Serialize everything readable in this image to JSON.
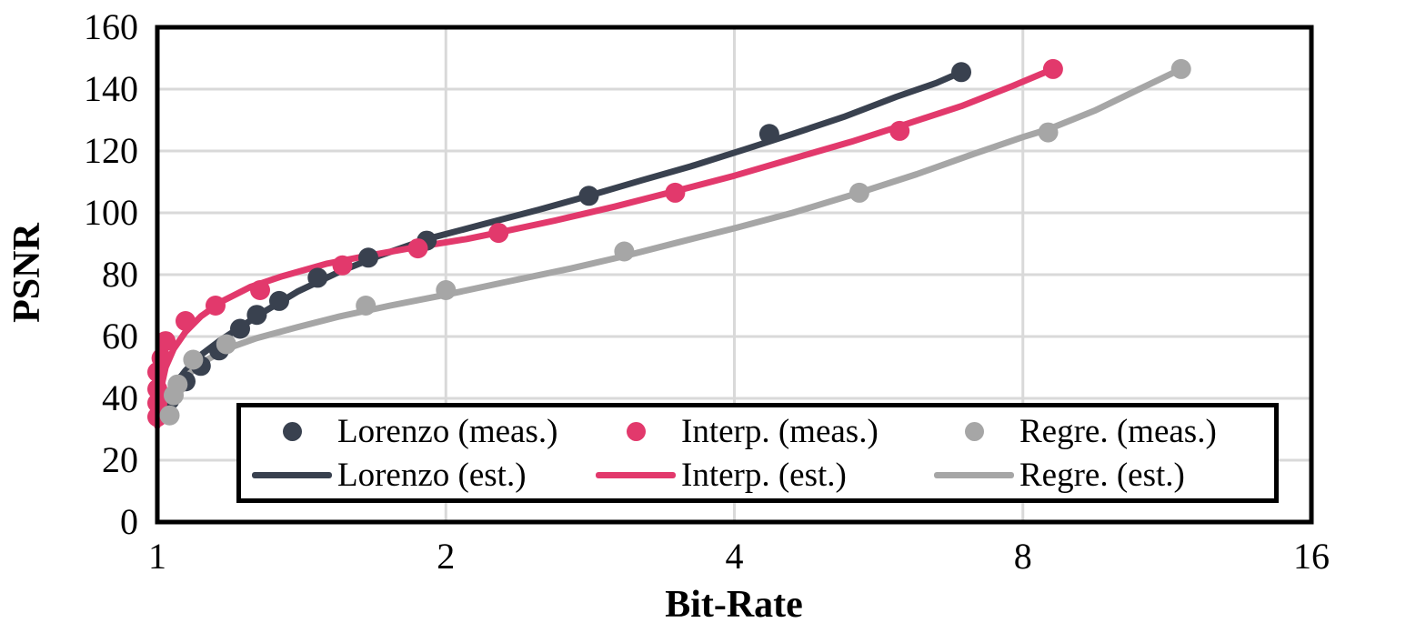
{
  "chart_data": {
    "type": "scatter",
    "title": "",
    "xlabel": "Bit-Rate",
    "ylabel": "PSNR",
    "x_scale": "log2",
    "xlim": [
      1,
      16
    ],
    "ylim": [
      0,
      160
    ],
    "x_ticks": [
      1,
      2,
      4,
      8,
      16
    ],
    "y_ticks": [
      0,
      20,
      40,
      60,
      80,
      100,
      120,
      140,
      160
    ],
    "grid": true,
    "legend_position": "inside-bottom",
    "colors": {
      "navy": "#39414F",
      "pink": "#E2396C",
      "gray": "#A6A6A6",
      "gridline": "#D9D9D9",
      "axis": "#000000",
      "background": "#FFFFFF"
    },
    "series": [
      {
        "name": "Lorenzo (meas.)",
        "kind": "scatter",
        "color": "#39414F",
        "points": [
          [
            1.02,
            36
          ],
          [
            1.03,
            39.5
          ],
          [
            1.07,
            45.5
          ],
          [
            1.11,
            50.5
          ],
          [
            1.16,
            55.5
          ],
          [
            1.22,
            62.5
          ],
          [
            1.27,
            67
          ],
          [
            1.34,
            71.5
          ],
          [
            1.47,
            79
          ],
          [
            1.66,
            85.5
          ],
          [
            1.91,
            91
          ],
          [
            2.82,
            105.5
          ],
          [
            4.35,
            125.5
          ],
          [
            6.9,
            145.5
          ]
        ]
      },
      {
        "name": "Interp. (meas.)",
        "kind": "scatter",
        "color": "#E2396C",
        "points": [
          [
            1.0,
            34
          ],
          [
            1.0,
            38.5
          ],
          [
            1.0,
            43
          ],
          [
            1.0,
            48.5
          ],
          [
            1.01,
            53
          ],
          [
            1.02,
            58.5
          ],
          [
            1.07,
            65
          ],
          [
            1.15,
            70
          ],
          [
            1.28,
            75
          ],
          [
            1.56,
            83
          ],
          [
            1.87,
            88.5
          ],
          [
            2.27,
            93.5
          ],
          [
            3.47,
            106.5
          ],
          [
            5.95,
            126.5
          ],
          [
            8.6,
            146.5
          ]
        ]
      },
      {
        "name": "Regre. (meas.)",
        "kind": "scatter",
        "color": "#A6A6A6",
        "points": [
          [
            1.03,
            34.5
          ],
          [
            1.04,
            41
          ],
          [
            1.05,
            44.5
          ],
          [
            1.09,
            52.5
          ],
          [
            1.18,
            57.5
          ],
          [
            1.65,
            70
          ],
          [
            2.0,
            75
          ],
          [
            3.07,
            87.5
          ],
          [
            5.4,
            106.5
          ],
          [
            8.5,
            126
          ],
          [
            11.7,
            146.5
          ]
        ]
      },
      {
        "name": "Lorenzo (est.)",
        "kind": "line",
        "color": "#39414F",
        "points": [
          [
            1.01,
            34
          ],
          [
            1.02,
            39
          ],
          [
            1.04,
            44
          ],
          [
            1.07,
            49
          ],
          [
            1.11,
            54
          ],
          [
            1.16,
            58.5
          ],
          [
            1.22,
            63
          ],
          [
            1.3,
            68.5
          ],
          [
            1.4,
            74.5
          ],
          [
            1.55,
            81
          ],
          [
            1.7,
            86
          ],
          [
            1.91,
            91.5
          ],
          [
            2.2,
            96.5
          ],
          [
            2.5,
            101
          ],
          [
            2.82,
            105.5
          ],
          [
            3.2,
            110.5
          ],
          [
            3.6,
            115
          ],
          [
            4.1,
            120.5
          ],
          [
            4.6,
            125.5
          ],
          [
            5.2,
            131
          ],
          [
            5.9,
            137.5
          ],
          [
            6.5,
            142
          ],
          [
            6.9,
            145.5
          ]
        ]
      },
      {
        "name": "Interp. (est.)",
        "kind": "line",
        "color": "#E2396C",
        "points": [
          [
            1.0,
            31
          ],
          [
            1.005,
            38
          ],
          [
            1.01,
            44
          ],
          [
            1.02,
            50
          ],
          [
            1.04,
            56
          ],
          [
            1.07,
            61.5
          ],
          [
            1.11,
            66.5
          ],
          [
            1.17,
            71.5
          ],
          [
            1.25,
            76
          ],
          [
            1.35,
            79.5
          ],
          [
            1.5,
            83.5
          ],
          [
            1.65,
            86
          ],
          [
            1.87,
            89
          ],
          [
            2.1,
            91.5
          ],
          [
            2.3,
            94
          ],
          [
            2.6,
            97.5
          ],
          [
            3.0,
            102
          ],
          [
            3.47,
            107
          ],
          [
            4.0,
            112
          ],
          [
            4.6,
            117.5
          ],
          [
            5.3,
            123
          ],
          [
            5.95,
            128
          ],
          [
            6.9,
            134.5
          ],
          [
            7.8,
            141
          ],
          [
            8.6,
            146.5
          ]
        ]
      },
      {
        "name": "Regre. (est.)",
        "kind": "line",
        "color": "#A6A6A6",
        "points": [
          [
            1.02,
            33
          ],
          [
            1.03,
            38
          ],
          [
            1.05,
            43
          ],
          [
            1.08,
            48
          ],
          [
            1.12,
            52
          ],
          [
            1.18,
            56
          ],
          [
            1.27,
            59.5
          ],
          [
            1.4,
            63
          ],
          [
            1.55,
            66.5
          ],
          [
            1.75,
            70
          ],
          [
            2.0,
            73.5
          ],
          [
            2.3,
            77.5
          ],
          [
            2.7,
            82
          ],
          [
            3.07,
            86
          ],
          [
            3.5,
            90.5
          ],
          [
            4.0,
            95
          ],
          [
            4.6,
            100
          ],
          [
            5.4,
            106.5
          ],
          [
            6.2,
            112.5
          ],
          [
            7.1,
            119
          ],
          [
            8.0,
            124.5
          ],
          [
            8.5,
            127
          ],
          [
            9.5,
            133
          ],
          [
            10.5,
            139.5
          ],
          [
            11.7,
            146.5
          ]
        ]
      }
    ],
    "legend_order": [
      "Lorenzo (meas.)",
      "Interp. (meas.)",
      "Regre. (meas.)",
      "Lorenzo (est.)",
      "Interp. (est.)",
      "Regre. (est.)"
    ]
  }
}
